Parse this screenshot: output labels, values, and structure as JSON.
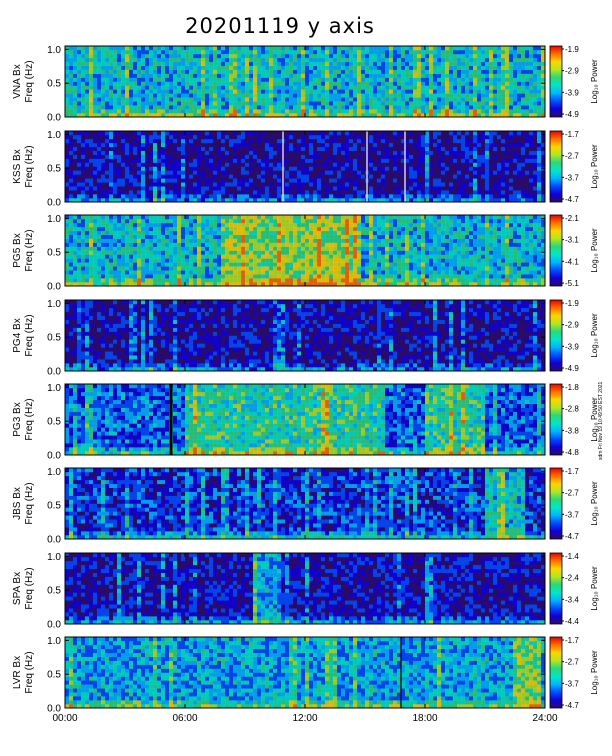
{
  "title": "20201119 y axis",
  "side_note": "sdm Fri Nov 19 10:49:50 EST 2021",
  "colors": {
    "background_dark": "#1d0f5e",
    "bar_scale": [
      "#2b0a6b",
      "#1200d6",
      "#004dff",
      "#00b4ff",
      "#00e8c8",
      "#2bd87a",
      "#b4e61e",
      "#ffd400",
      "#ff6e00",
      "#e60000"
    ]
  },
  "chart_data": {
    "type": "heatmap",
    "title": "20201119 y axis",
    "x": {
      "range": [
        0,
        24
      ],
      "unit": "hours",
      "ticks": [
        "00:00",
        "06:00",
        "12:00",
        "18:00",
        "24:00"
      ]
    },
    "y": {
      "range": [
        0,
        1.05
      ],
      "ticks": [
        "0.0",
        "0.5",
        "1.0"
      ]
    },
    "colorbar_label": "Log₁₀ Power",
    "panels": [
      {
        "name": "VNA_Bx",
        "ylabel": "VNA Bx\nFreq (Hz)",
        "cbar_ticks": [
          "-1.9",
          "-2.9",
          "-3.9",
          "-4.9"
        ],
        "level": 0.45,
        "gaps": [],
        "bright_bands": []
      },
      {
        "name": "KSS_Bx",
        "ylabel": "KSS Bx\nFreq (Hz)",
        "cbar_ticks": [
          "-1.7",
          "-2.7",
          "-3.7",
          "-4.7"
        ],
        "level": 0.12,
        "gaps": [
          10.9,
          15.1,
          17.0
        ],
        "bright_bands": []
      },
      {
        "name": "PG5_Bx",
        "ylabel": "PG5 Bx\nFreq (Hz)",
        "cbar_ticks": [
          "-2.1",
          "-3.1",
          "-4.1",
          "-5.1"
        ],
        "level": 0.45,
        "gaps": [],
        "bright_bands": [
          [
            8,
            14.5
          ]
        ]
      },
      {
        "name": "PG4_Bx",
        "ylabel": "PG4 Bx\nFreq (Hz)",
        "cbar_ticks": [
          "-1.9",
          "-2.9",
          "-3.9",
          "-4.9"
        ],
        "level": 0.12,
        "gaps": [],
        "bright_bands": []
      },
      {
        "name": "PG3_Bx",
        "ylabel": "PG3 Bx\nFreq (Hz)",
        "cbar_ticks": [
          "-1.8",
          "-2.8",
          "-3.8",
          "-4.8"
        ],
        "level": 0.3,
        "gaps": [
          5.3
        ],
        "bright_bands": [
          [
            6,
            16
          ],
          [
            18,
            21
          ]
        ]
      },
      {
        "name": "JBS_Bx",
        "ylabel": "JBS Bx\nFreq (Hz)",
        "cbar_ticks": [
          "-1.7",
          "-2.7",
          "-3.7",
          "-4.7"
        ],
        "level": 0.22,
        "gaps": [],
        "bright_bands": [
          [
            21,
            23
          ]
        ]
      },
      {
        "name": "SPA_Bx",
        "ylabel": "SPA Bx\nFreq (Hz)",
        "cbar_ticks": [
          "-1.4",
          "-2.4",
          "-3.4",
          "-4.4"
        ],
        "level": 0.15,
        "gaps": [],
        "bright_bands": [
          [
            9.5,
            10.8
          ]
        ]
      },
      {
        "name": "LVR_Bx",
        "ylabel": "LVR Bx\nFreq (Hz)",
        "cbar_ticks": [
          "-1.7",
          "-2.7",
          "-3.7",
          "-4.7"
        ],
        "level": 0.4,
        "gaps": [
          16.8
        ],
        "bright_bands": [
          [
            22.5,
            23.8
          ]
        ]
      }
    ]
  }
}
